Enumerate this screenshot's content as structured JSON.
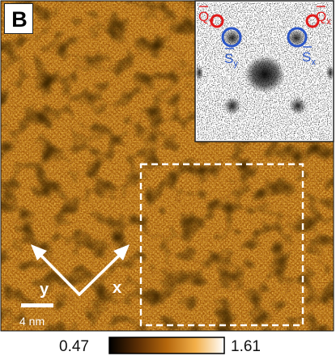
{
  "panel": {
    "letter": "B"
  },
  "main_image": {
    "colormap": "afmhot",
    "scalebar_label": "4 nm",
    "axis_x_label": "x",
    "axis_y_label": "y",
    "roi_style": "dashed white square"
  },
  "inset": {
    "kind": "fourier-transform",
    "markers": [
      {
        "label": "Q",
        "subscript": "y",
        "color": "#e01b1b"
      },
      {
        "label": "Q",
        "subscript": "x",
        "color": "#e01b1b"
      },
      {
        "label": "S",
        "subscript": "y",
        "color": "#2b56c8"
      },
      {
        "label": "S",
        "subscript": "x",
        "color": "#2b56c8"
      }
    ]
  },
  "colorbar": {
    "min_label": "0.47",
    "max_label": "1.61",
    "colors": [
      "#000000",
      "#5c2e05",
      "#b5670c",
      "#f3b04a",
      "#ffffff"
    ]
  }
}
